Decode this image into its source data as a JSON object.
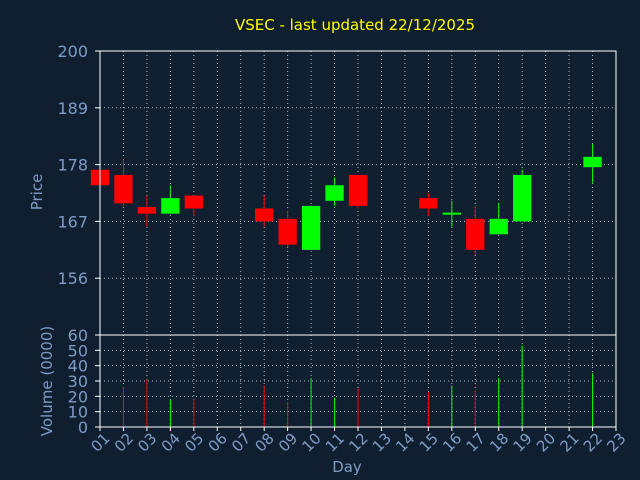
{
  "chart_data": {
    "type": "candlestick",
    "title": "VSEC - last updated 22/12/2025",
    "xlabel": "Day",
    "price_panel": {
      "ylabel": "Price",
      "ylim": [
        145,
        200
      ],
      "yticks": [
        "156",
        "167",
        "178",
        "189",
        "200"
      ]
    },
    "volume_panel": {
      "ylabel": "Volume (0000)",
      "ylim": [
        0,
        60
      ],
      "yticks": [
        "0",
        "10",
        "20",
        "30",
        "40",
        "50",
        "60"
      ]
    },
    "x": [
      "01",
      "02",
      "03",
      "04",
      "05",
      "06",
      "07",
      "08",
      "09",
      "10",
      "11",
      "12",
      "13",
      "14",
      "15",
      "16",
      "17",
      "18",
      "19",
      "20",
      "21",
      "22",
      "23"
    ],
    "candles": [
      {
        "day": "01",
        "open": 177.0,
        "high": 177.0,
        "low": 174.0,
        "close": 174.0,
        "volume": 0
      },
      {
        "day": "02",
        "open": 176.0,
        "high": 179.0,
        "low": 170.0,
        "close": 170.5,
        "volume": 26
      },
      {
        "day": "03",
        "open": 169.8,
        "high": 172.0,
        "low": 166.0,
        "close": 168.5,
        "volume": 31
      },
      {
        "day": "04",
        "open": 168.5,
        "high": 174.0,
        "low": 168.5,
        "close": 171.5,
        "volume": 18
      },
      {
        "day": "05",
        "open": 172.0,
        "high": 172.0,
        "low": 168.0,
        "close": 169.5,
        "volume": 18
      },
      {
        "day": "08",
        "open": 169.5,
        "high": 172.0,
        "low": 166.0,
        "close": 167.0,
        "volume": 27
      },
      {
        "day": "09",
        "open": 167.5,
        "high": 169.0,
        "low": 162.0,
        "close": 162.5,
        "volume": 16
      },
      {
        "day": "10",
        "open": 161.5,
        "high": 170.0,
        "low": 161.5,
        "close": 170.0,
        "volume": 32
      },
      {
        "day": "11",
        "open": 171.0,
        "high": 175.5,
        "low": 170.0,
        "close": 174.0,
        "volume": 19
      },
      {
        "day": "12",
        "open": 176.0,
        "high": 176.0,
        "low": 169.5,
        "close": 170.0,
        "volume": 25
      },
      {
        "day": "15",
        "open": 171.5,
        "high": 172.5,
        "low": 168.0,
        "close": 169.5,
        "volume": 23
      },
      {
        "day": "16",
        "open": 168.5,
        "high": 171.0,
        "low": 166.0,
        "close": 168.5,
        "volume": 27
      },
      {
        "day": "17",
        "open": 167.5,
        "high": 170.0,
        "low": 160.5,
        "close": 161.5,
        "volume": 24
      },
      {
        "day": "18",
        "open": 164.5,
        "high": 170.5,
        "low": 164.5,
        "close": 167.5,
        "volume": 32
      },
      {
        "day": "19",
        "open": 167.0,
        "high": 177.0,
        "low": 167.0,
        "close": 176.0,
        "volume": 53
      },
      {
        "day": "22",
        "open": 177.5,
        "high": 182.0,
        "low": 174.5,
        "close": 179.5,
        "volume": 35
      }
    ],
    "colors": {
      "background": "#0f1f30",
      "axis": "#ffffff",
      "grid": "#ffffff",
      "text": "#7f9cc6",
      "title": "#ffff00",
      "up": "#00ff00",
      "down": "#ff0000"
    },
    "grid": true
  }
}
